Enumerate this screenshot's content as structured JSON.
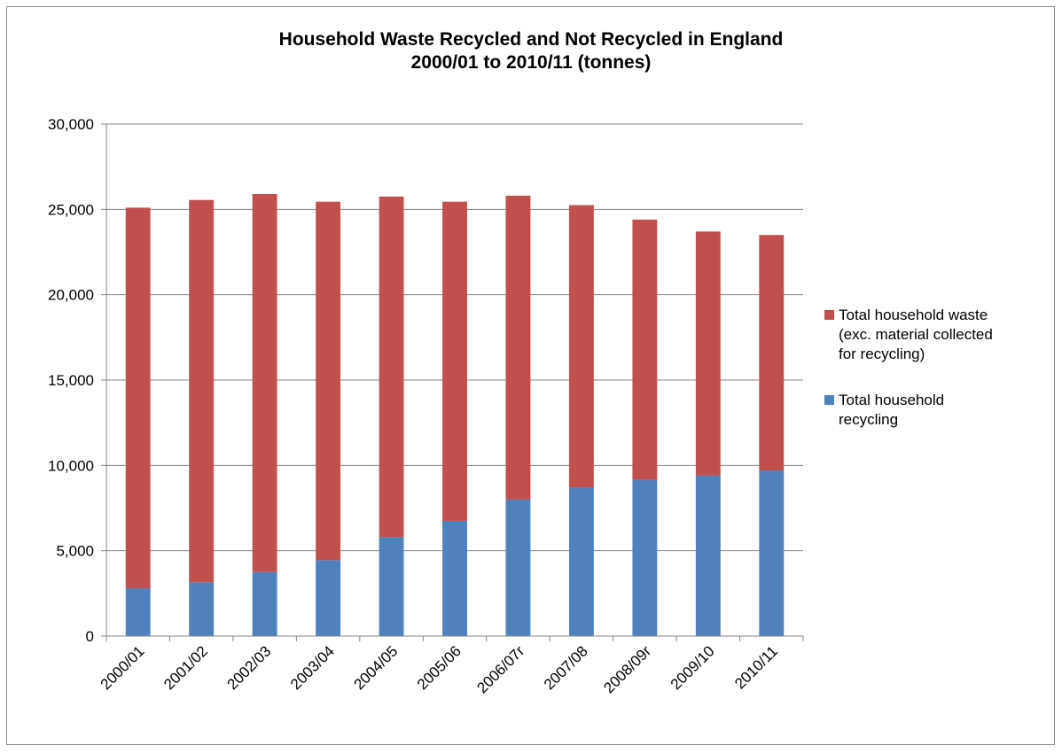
{
  "chart_data": {
    "type": "bar",
    "stacked": true,
    "title": "Household Waste Recycled and Not Recycled in England",
    "subtitle": "2000/01 to 2010/11 (tonnes)",
    "xlabel": "",
    "ylabel": "",
    "ylim": [
      0,
      30000
    ],
    "yticks": [
      "0",
      "5,000",
      "10,000",
      "15,000",
      "20,000",
      "25,000",
      "30,000"
    ],
    "grid": true,
    "legend_position": "right",
    "categories": [
      "2000/01",
      "2001/02",
      "2002/03",
      "2003/04",
      "2004/05",
      "2005/06",
      "2006/07r",
      "2007/08",
      "2008/09r",
      "2009/10",
      "2010/11"
    ],
    "series": [
      {
        "name": "Total household recycling",
        "color": "#4f81bd",
        "values": [
          2800,
          3150,
          3750,
          4450,
          5800,
          6750,
          8000,
          8700,
          9150,
          9400,
          9700
        ]
      },
      {
        "name": "Total household waste (exc. material collected for recycling)",
        "color": "#c0504d",
        "values": [
          22300,
          22400,
          22150,
          21000,
          19950,
          18700,
          17800,
          16550,
          15250,
          14300,
          13800
        ]
      }
    ]
  },
  "legend": [
    {
      "label_lines": [
        "Total household waste",
        "(exc. material collected",
        "for recycling)"
      ],
      "color": "#c0504d"
    },
    {
      "label_lines": [
        "Total household",
        "recycling"
      ],
      "color": "#4f81bd"
    }
  ]
}
